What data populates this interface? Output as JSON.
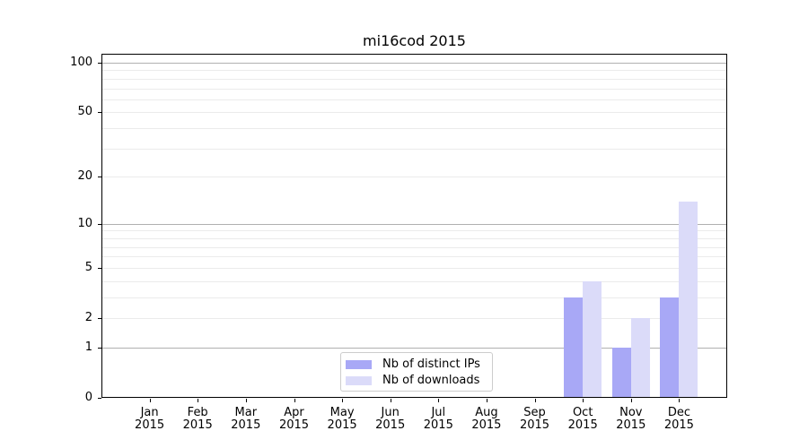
{
  "page": {
    "background": "#ffffff"
  },
  "chart_data": {
    "type": "bar",
    "title": "mi16cod 2015",
    "categories": [
      "Jan",
      "Feb",
      "Mar",
      "Apr",
      "May",
      "Jun",
      "Jul",
      "Aug",
      "Sep",
      "Oct",
      "Nov",
      "Dec"
    ],
    "category_year": "2015",
    "series": [
      {
        "name": "Nb of distinct IPs",
        "color": "#a8a8f6",
        "values": [
          0,
          0,
          0,
          0,
          0,
          0,
          0,
          0,
          0,
          3,
          1,
          3
        ]
      },
      {
        "name": "Nb of downloads",
        "color": "#dbdbf9",
        "values": [
          0,
          0,
          0,
          0,
          0,
          0,
          0,
          0,
          0,
          4,
          2,
          14
        ]
      }
    ],
    "xlabel": "",
    "ylabel": "",
    "y_scale": "log10(1+v)",
    "y_ticks": [
      0,
      1,
      2,
      5,
      10,
      20,
      50,
      100
    ],
    "y_axis_max": 113,
    "ylim": [
      0,
      113
    ],
    "grid": {
      "major_values": [
        1,
        10,
        100
      ],
      "minor_values": [
        2,
        3,
        4,
        5,
        6,
        7,
        8,
        9,
        20,
        30,
        40,
        50,
        60,
        70,
        80,
        90
      ],
      "major_color": "#b0b0b0",
      "minor_color": "#ebebeb"
    },
    "legend": {
      "position": "bottom-center",
      "border_color": "#cccccc"
    },
    "axis_color": "#000000"
  }
}
